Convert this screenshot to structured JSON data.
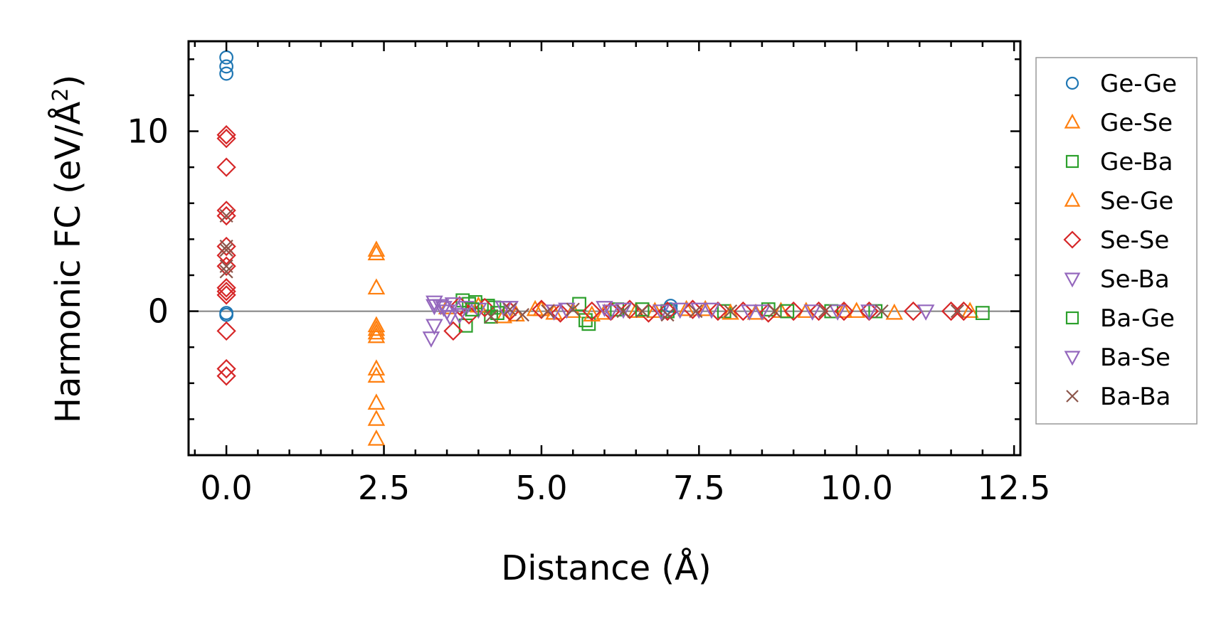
{
  "chart_data": {
    "type": "scatter",
    "title": "",
    "xlabel": "Distance (Å)",
    "ylabel_main": "Harmonic FC (eV/Å",
    "ylabel_sup": "2",
    "ylabel_close": ")",
    "xlim": [
      -0.6,
      12.6
    ],
    "ylim": [
      -8.0,
      15.0
    ],
    "xticks_major": [
      0.0,
      2.5,
      5.0,
      7.5,
      10.0,
      12.5
    ],
    "xtick_labels": [
      "0.0",
      "2.5",
      "5.0",
      "7.5",
      "10.0",
      "12.5"
    ],
    "yticks_major": [
      0,
      10
    ],
    "ytick_labels": [
      "0",
      "10"
    ],
    "x_minor_step": 0.5,
    "y_minor_step": 2,
    "zero_line": true,
    "grid": false,
    "legend_position": "right, outside",
    "series": [
      {
        "name": "Ge-Ge",
        "label": "Ge-Ge",
        "marker": "circle",
        "color": "#1f77b4",
        "points": [
          [
            0,
            14.1
          ],
          [
            0,
            13.6
          ],
          [
            0,
            13.2
          ],
          [
            0,
            -0.2
          ],
          [
            0,
            -0.1
          ],
          [
            7.05,
            0.3
          ],
          [
            7.05,
            0.1
          ]
        ]
      },
      {
        "name": "Ge-Se",
        "label": "Ge-Se",
        "marker": "triangle-up",
        "color": "#ff7f0e",
        "points": [
          [
            2.38,
            3.4
          ],
          [
            2.38,
            3.2
          ],
          [
            2.38,
            1.3
          ],
          [
            2.38,
            -0.8
          ],
          [
            2.38,
            -1.0
          ],
          [
            2.38,
            -1.2
          ],
          [
            2.38,
            -1.4
          ],
          [
            2.38,
            -3.2
          ],
          [
            2.38,
            -3.6
          ],
          [
            2.38,
            -5.1
          ],
          [
            2.38,
            -6.0
          ],
          [
            2.38,
            -7.1
          ],
          [
            4.6,
            -0.2
          ],
          [
            4.9,
            0.1
          ],
          [
            5.2,
            -0.1
          ],
          [
            5.5,
            0.0
          ],
          [
            6.0,
            -0.1
          ],
          [
            6.8,
            0.0
          ],
          [
            7.6,
            0.1
          ],
          [
            8.4,
            -0.1
          ],
          [
            9.2,
            0.0
          ],
          [
            10.0,
            0.0
          ],
          [
            10.6,
            -0.1
          ],
          [
            11.8,
            0.0
          ]
        ]
      },
      {
        "name": "Ge-Ba",
        "label": "Ge-Ba",
        "marker": "square",
        "color": "#2ca02c",
        "points": [
          [
            3.75,
            0.6
          ],
          [
            3.85,
            0.4
          ],
          [
            3.8,
            -0.8
          ],
          [
            3.95,
            0.5
          ],
          [
            4.15,
            0.3
          ],
          [
            4.2,
            -0.3
          ],
          [
            4.25,
            0.2
          ],
          [
            5.6,
            0.4
          ],
          [
            5.75,
            -0.7
          ],
          [
            5.7,
            -0.5
          ],
          [
            6.2,
            0.1
          ],
          [
            7.0,
            0.0
          ],
          [
            7.9,
            0.0
          ],
          [
            8.6,
            0.1
          ],
          [
            9.6,
            0.0
          ],
          [
            10.3,
            0.0
          ],
          [
            12.0,
            -0.1
          ]
        ]
      },
      {
        "name": "Se-Ge",
        "label": "Se-Ge",
        "marker": "triangle-up",
        "color": "#ff7f0e",
        "points": [
          [
            3.5,
            0.2
          ],
          [
            4.0,
            0.3
          ],
          [
            4.4,
            -0.3
          ],
          [
            5.0,
            0.1
          ],
          [
            5.8,
            -0.2
          ],
          [
            6.5,
            0.0
          ],
          [
            7.3,
            0.1
          ],
          [
            8.0,
            -0.1
          ],
          [
            8.8,
            0.0
          ],
          [
            9.8,
            0.0
          ]
        ]
      },
      {
        "name": "Se-Se",
        "label": "Se-Se",
        "marker": "diamond",
        "color": "#d62728",
        "points": [
          [
            0,
            9.8
          ],
          [
            0,
            9.6
          ],
          [
            0,
            8.0
          ],
          [
            0,
            5.6
          ],
          [
            0,
            5.3
          ],
          [
            0,
            3.6
          ],
          [
            0,
            3.1
          ],
          [
            0,
            2.5
          ],
          [
            0,
            1.3
          ],
          [
            0,
            1.1
          ],
          [
            0,
            0.9
          ],
          [
            0,
            -1.1
          ],
          [
            0,
            -3.2
          ],
          [
            0,
            -3.6
          ],
          [
            3.6,
            -1.1
          ],
          [
            3.7,
            0.3
          ],
          [
            3.85,
            -0.2
          ],
          [
            4.1,
            0.2
          ],
          [
            4.5,
            0.0
          ],
          [
            5.0,
            0.1
          ],
          [
            5.3,
            -0.1
          ],
          [
            5.8,
            0.0
          ],
          [
            6.1,
            0.0
          ],
          [
            6.4,
            0.1
          ],
          [
            6.7,
            -0.1
          ],
          [
            7.0,
            0.0
          ],
          [
            7.4,
            0.1
          ],
          [
            7.8,
            0.0
          ],
          [
            8.2,
            0.0
          ],
          [
            8.6,
            -0.1
          ],
          [
            9.0,
            0.0
          ],
          [
            9.4,
            0.0
          ],
          [
            9.8,
            0.0
          ],
          [
            10.2,
            0.0
          ],
          [
            10.9,
            0.0
          ],
          [
            11.5,
            0.0
          ],
          [
            11.7,
            0.0
          ]
        ]
      },
      {
        "name": "Se-Ba",
        "label": "Se-Ba",
        "marker": "triangle-down",
        "color": "#9467bd",
        "points": [
          [
            3.25,
            -1.5
          ],
          [
            3.3,
            -0.8
          ],
          [
            3.3,
            0.5
          ],
          [
            3.4,
            0.3
          ],
          [
            3.5,
            0.0
          ],
          [
            3.55,
            -0.3
          ],
          [
            3.6,
            0.4
          ],
          [
            3.8,
            0.2
          ],
          [
            4.0,
            0.1
          ],
          [
            4.5,
            0.2
          ],
          [
            5.2,
            0.0
          ],
          [
            6.0,
            0.2
          ],
          [
            6.3,
            0.1
          ],
          [
            6.9,
            0.0
          ],
          [
            7.5,
            0.1
          ],
          [
            8.3,
            0.0
          ],
          [
            9.3,
            0.0
          ],
          [
            10.2,
            0.0
          ],
          [
            11.1,
            0.0
          ]
        ]
      },
      {
        "name": "Ba-Ge",
        "label": "Ba-Ge",
        "marker": "square",
        "color": "#2ca02c",
        "points": [
          [
            3.9,
            0.1
          ],
          [
            4.3,
            -0.1
          ],
          [
            6.6,
            0.1
          ],
          [
            8.9,
            0.0
          ]
        ]
      },
      {
        "name": "Ba-Se",
        "label": "Ba-Se",
        "marker": "triangle-down",
        "color": "#9467bd",
        "points": [
          [
            3.3,
            0.3
          ],
          [
            3.45,
            0.2
          ],
          [
            3.7,
            -0.2
          ],
          [
            4.4,
            0.2
          ],
          [
            5.4,
            0.1
          ],
          [
            6.1,
            0.0
          ],
          [
            7.2,
            0.1
          ],
          [
            7.7,
            0.1
          ],
          [
            8.5,
            0.0
          ],
          [
            9.7,
            0.0
          ]
        ]
      },
      {
        "name": "Ba-Ba",
        "label": "Ba-Ba",
        "marker": "x",
        "color": "#8c564b",
        "points": [
          [
            0,
            5.3
          ],
          [
            0,
            3.6
          ],
          [
            0,
            3.4
          ],
          [
            0,
            2.5
          ],
          [
            0,
            2.2
          ],
          [
            4.2,
            -0.3
          ],
          [
            4.5,
            0.1
          ],
          [
            4.7,
            -0.2
          ],
          [
            5.1,
            0.0
          ],
          [
            5.5,
            0.1
          ],
          [
            6.3,
            0.0
          ],
          [
            6.6,
            0.0
          ],
          [
            7.0,
            -0.2
          ],
          [
            7.45,
            0.0
          ],
          [
            8.0,
            0.0
          ],
          [
            8.7,
            0.0
          ],
          [
            9.5,
            0.0
          ],
          [
            10.4,
            0.0
          ],
          [
            11.6,
            0.0
          ]
        ]
      }
    ]
  }
}
